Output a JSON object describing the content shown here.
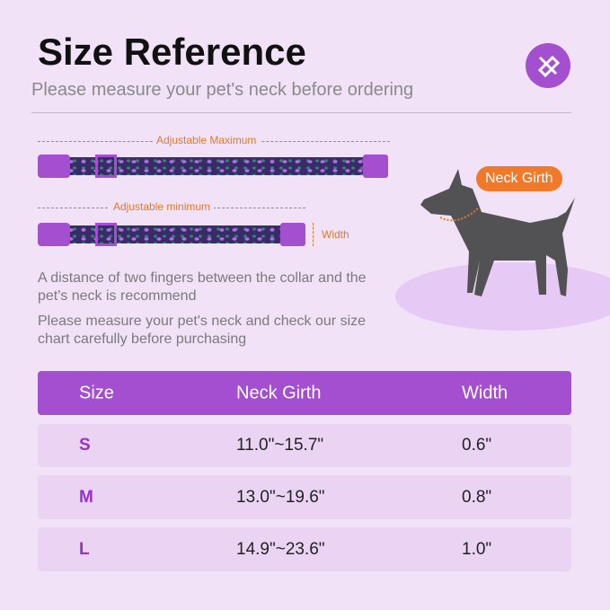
{
  "title": "Size Reference",
  "subtitle": "Please measure your pet's neck before ordering",
  "collar": {
    "max_label": "Adjustable Maximum",
    "min_label": "Adjustable minimum",
    "width_label": "Width"
  },
  "dog": {
    "callout": "Neck Girth"
  },
  "notes": [
    "A distance of two fingers between the collar and the pet's neck is recommend",
    "Please measure your pet's neck and check our size chart carefully before purchasing"
  ],
  "table": {
    "headers": [
      "Size",
      "Neck Girth",
      "Width"
    ],
    "rows": [
      [
        "S",
        "11.0\"~15.7\"",
        "0.6\""
      ],
      [
        "M",
        "13.0\"~19.6\"",
        "0.8\""
      ],
      [
        "L",
        "14.9\"~23.6\"",
        "1.0\""
      ]
    ]
  },
  "colors": {
    "accent": "#a44ed0",
    "callout": "#f07a2a",
    "background": "#f1e2f8"
  },
  "icons": [
    "ruler-pencil-icon"
  ]
}
